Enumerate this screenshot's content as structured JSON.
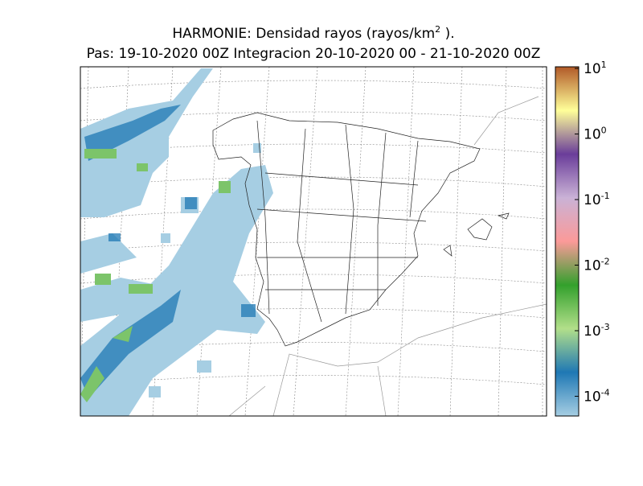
{
  "title": {
    "text": "HARMONIE: Densidad rayos  (rayos/km",
    "sup": "2",
    "end": " )."
  },
  "subtitle": "Pas: 19-10-2020 00Z Integracion 20-10-2020 00 - 21-10-2020 00Z",
  "colorbar": {
    "scale": "log",
    "lim": [
      5e-05,
      10.6
    ],
    "colormap": [
      "#a6cee3",
      "#1f78b4",
      "#b2df8a",
      "#33a02c",
      "#fb9a99",
      "#cab2d6",
      "#6a3d9a",
      "#ffff99",
      "#b15928"
    ],
    "ticks": [
      {
        "value": 10,
        "base": "10",
        "exp": "1"
      },
      {
        "value": 1,
        "base": "10",
        "exp": "0"
      },
      {
        "value": 0.1,
        "base": "10",
        "exp": "-1"
      },
      {
        "value": 0.01,
        "base": "10",
        "exp": "-2"
      },
      {
        "value": 0.001,
        "base": "10",
        "exp": "-3"
      },
      {
        "value": 0.0001,
        "base": "10",
        "exp": "-4"
      }
    ]
  }
}
